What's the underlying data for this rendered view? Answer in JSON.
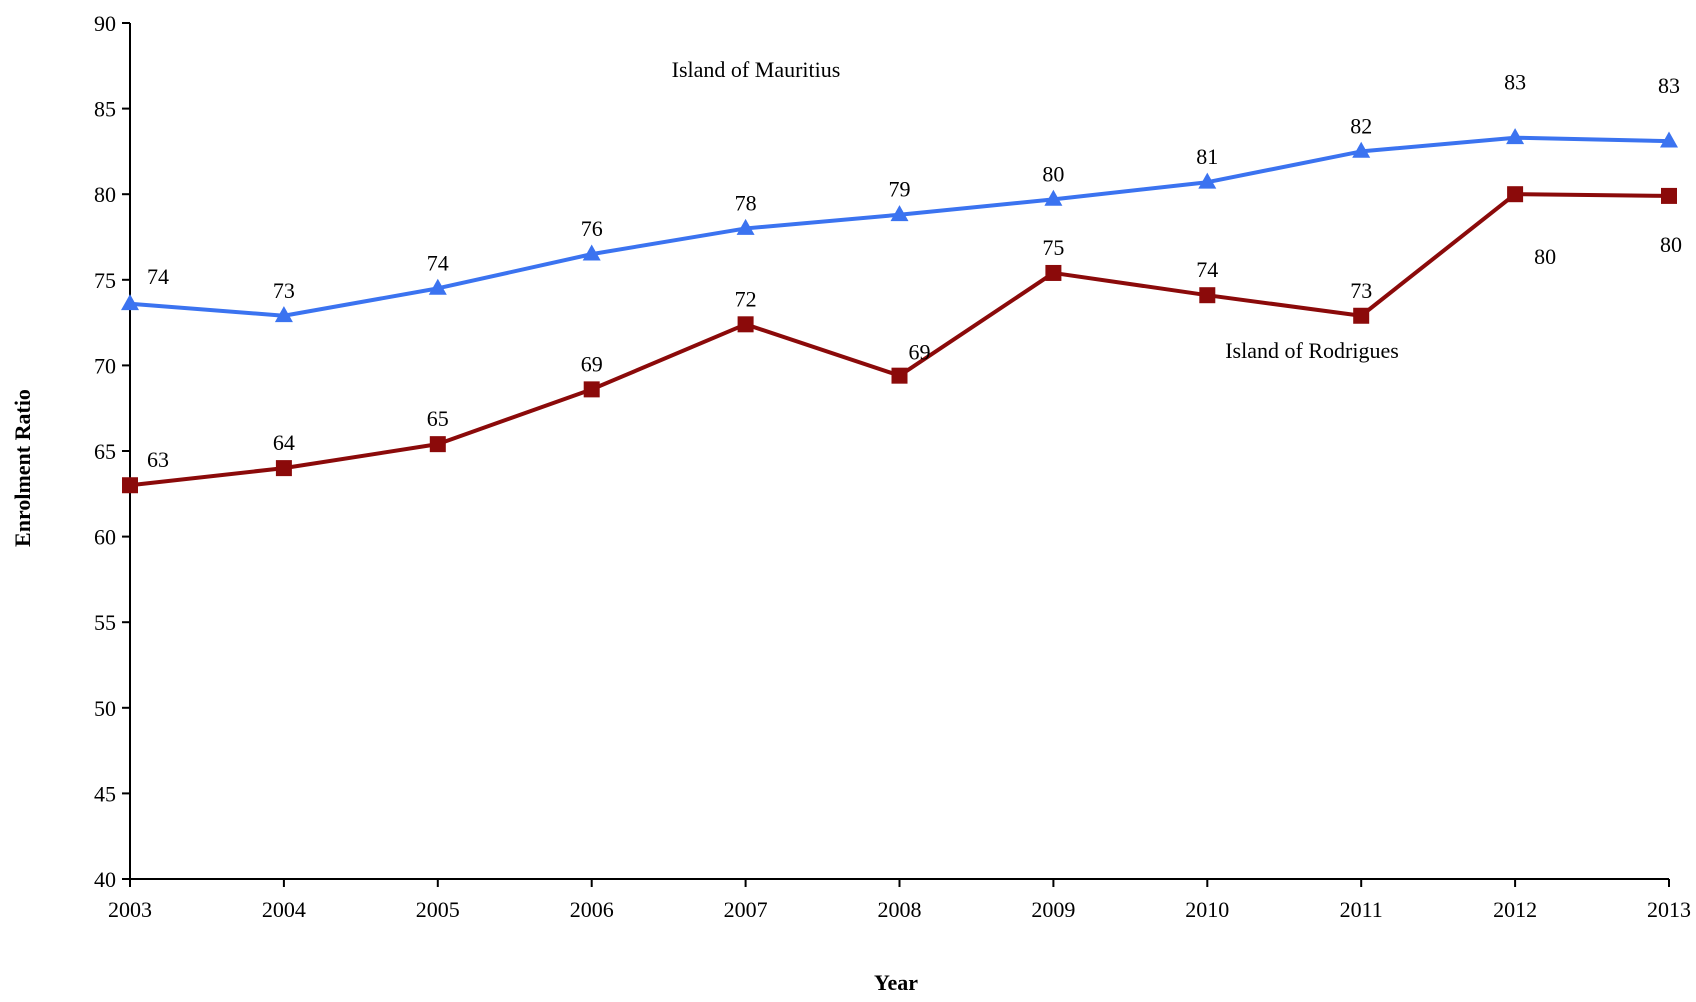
{
  "chart_data": {
    "type": "line",
    "title": "",
    "xlabel": "Year",
    "ylabel": "Enrolment Ratio",
    "x": [
      "2003",
      "2004",
      "2005",
      "2006",
      "2007",
      "2008",
      "2009",
      "2010",
      "2011",
      "2012",
      "2013"
    ],
    "ylim": [
      40,
      90
    ],
    "yticks": [
      40,
      45,
      50,
      55,
      60,
      65,
      70,
      75,
      80,
      85,
      90
    ],
    "grid": false,
    "legend": "none",
    "series": [
      {
        "name": "Island of Mauritius",
        "color": "#3b73f0",
        "marker": "triangle",
        "values": [
          73.6,
          72.9,
          74.5,
          76.5,
          78.0,
          78.8,
          79.7,
          80.7,
          82.5,
          83.3,
          83.1
        ],
        "labels": [
          "74",
          "73",
          "74",
          "76",
          "78",
          "79",
          "80",
          "81",
          "82",
          "83",
          "83"
        ]
      },
      {
        "name": "Island of Rodrigues",
        "color": "#8b0a0a",
        "marker": "square",
        "values": [
          63.0,
          64.0,
          65.4,
          68.6,
          72.4,
          69.4,
          75.4,
          74.1,
          72.9,
          80.0,
          79.9
        ],
        "labels": [
          "63",
          "64",
          "65",
          "69",
          "72",
          "69",
          "75",
          "74",
          "73",
          "80",
          "80"
        ]
      }
    ]
  }
}
